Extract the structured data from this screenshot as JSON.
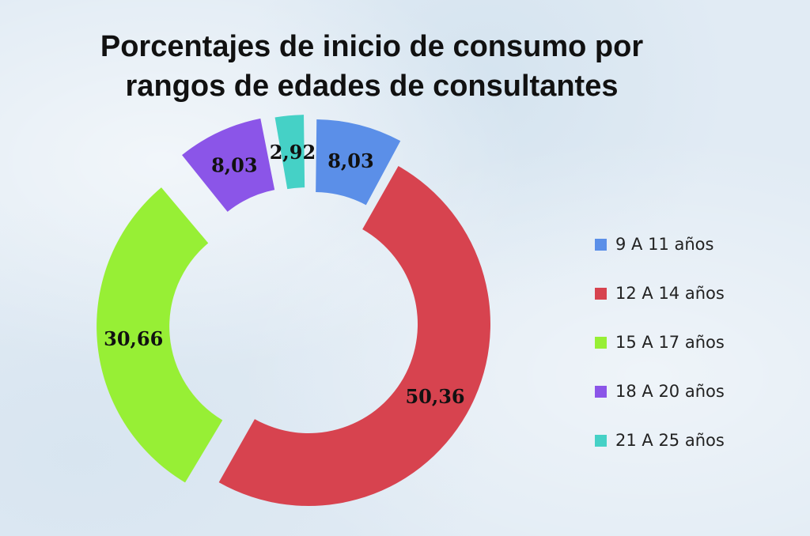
{
  "chart_data": {
    "type": "pie",
    "variant": "exploded-donut",
    "title_lines": [
      "Porcentajes de inicio de consumo por",
      "rangos de edades de consultantes"
    ],
    "slices": [
      {
        "label": "9 A 11 años",
        "value": 8.03,
        "value_label": "8,03",
        "color": "#5b8fe8"
      },
      {
        "label": "12 A 14 años",
        "value": 50.36,
        "value_label": "50,36",
        "color": "#d7434f"
      },
      {
        "label": "15 A 17 años",
        "value": 30.66,
        "value_label": "30,66",
        "color": "#97ef35"
      },
      {
        "label": "18 A 20 años",
        "value": 8.03,
        "value_label": "8,03",
        "color": "#8b55e8"
      },
      {
        "label": "21 A 25 años",
        "value": 2.92,
        "value_label": "2,92",
        "color": "#45d1c6"
      }
    ],
    "legend_position": "right"
  }
}
